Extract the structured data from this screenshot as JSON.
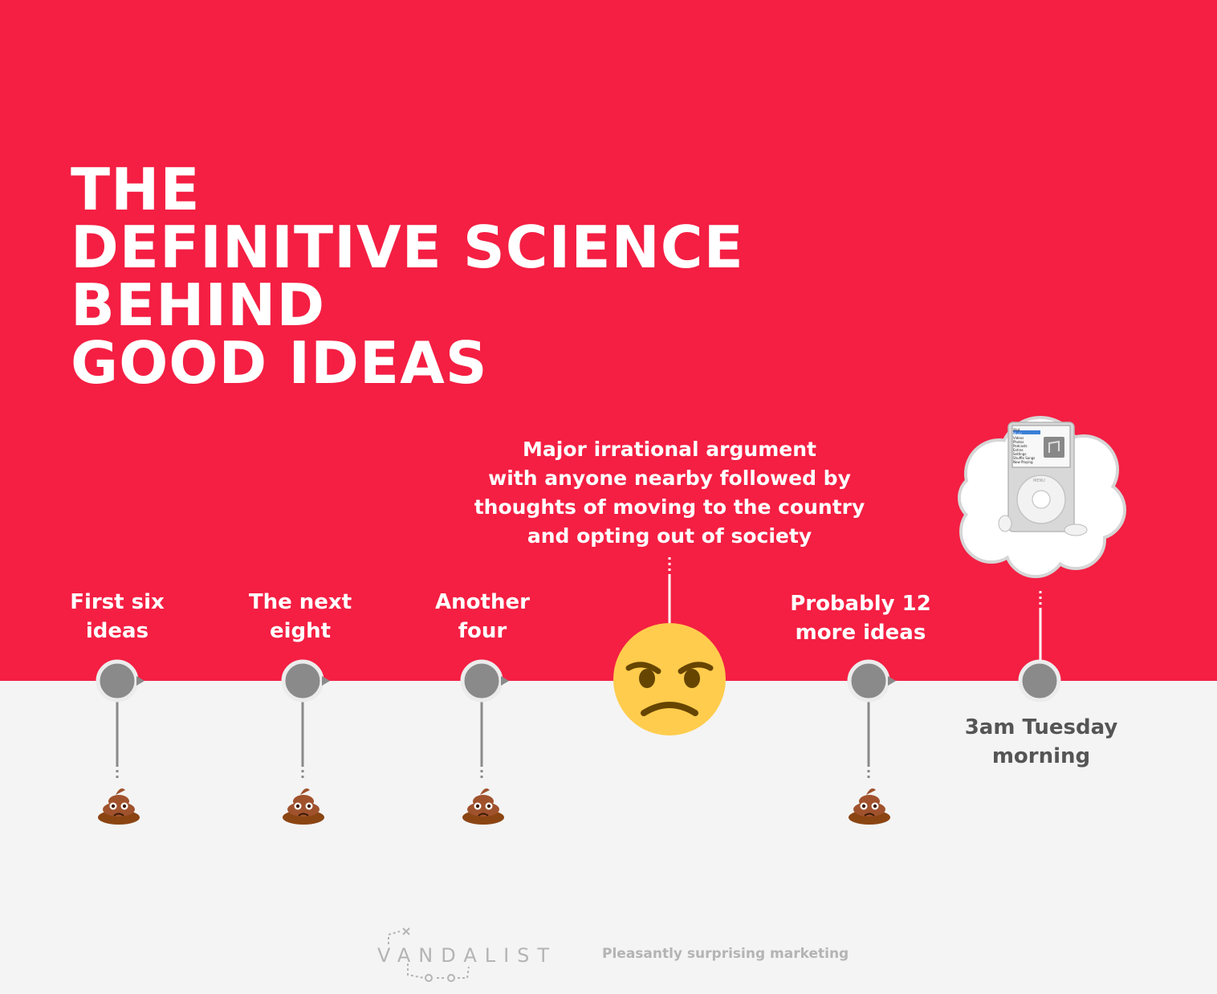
{
  "title_lines": [
    "THE",
    "DEFINITIVE SCIENCE",
    "BEHIND",
    "GOOD IDEAS"
  ],
  "timeline": [
    {
      "label_lines": [
        "First six",
        "ideas"
      ],
      "outcome": "poop-emoji"
    },
    {
      "label_lines": [
        "The next",
        "eight"
      ],
      "outcome": "poop-emoji"
    },
    {
      "label_lines": [
        "Another",
        "four"
      ],
      "outcome": "poop-emoji"
    },
    {
      "label_lines": [
        "Major irrational argument",
        "with anyone nearby followed by",
        "thoughts of moving to the country",
        "and opting out of society"
      ],
      "outcome": "angry-face-emoji"
    },
    {
      "label_lines": [
        "Probably 12",
        "more ideas"
      ],
      "outcome": "poop-emoji"
    },
    {
      "label_lines": [
        "3am Tuesday",
        "morning"
      ],
      "outcome": "ipod-thought-cloud"
    }
  ],
  "ipod_menu": [
    "iPod",
    "Music",
    "Videos",
    "Photos",
    "Podcasts",
    "Extras",
    "Settings",
    "Shuffle Songs",
    "Now Playing"
  ],
  "ipod_wheel_label": "MENU",
  "footer": {
    "logo": "VANDALIST",
    "tagline": "Pleasantly surprising marketing"
  },
  "colors": {
    "background_top": "#f41f43",
    "background_bottom": "#f4f4f4",
    "node": "#8a8a8a",
    "text_light": "#ffffff",
    "text_dark": "#555555",
    "emoji_face": "#ffcc4d",
    "poop": "#a0522d"
  }
}
